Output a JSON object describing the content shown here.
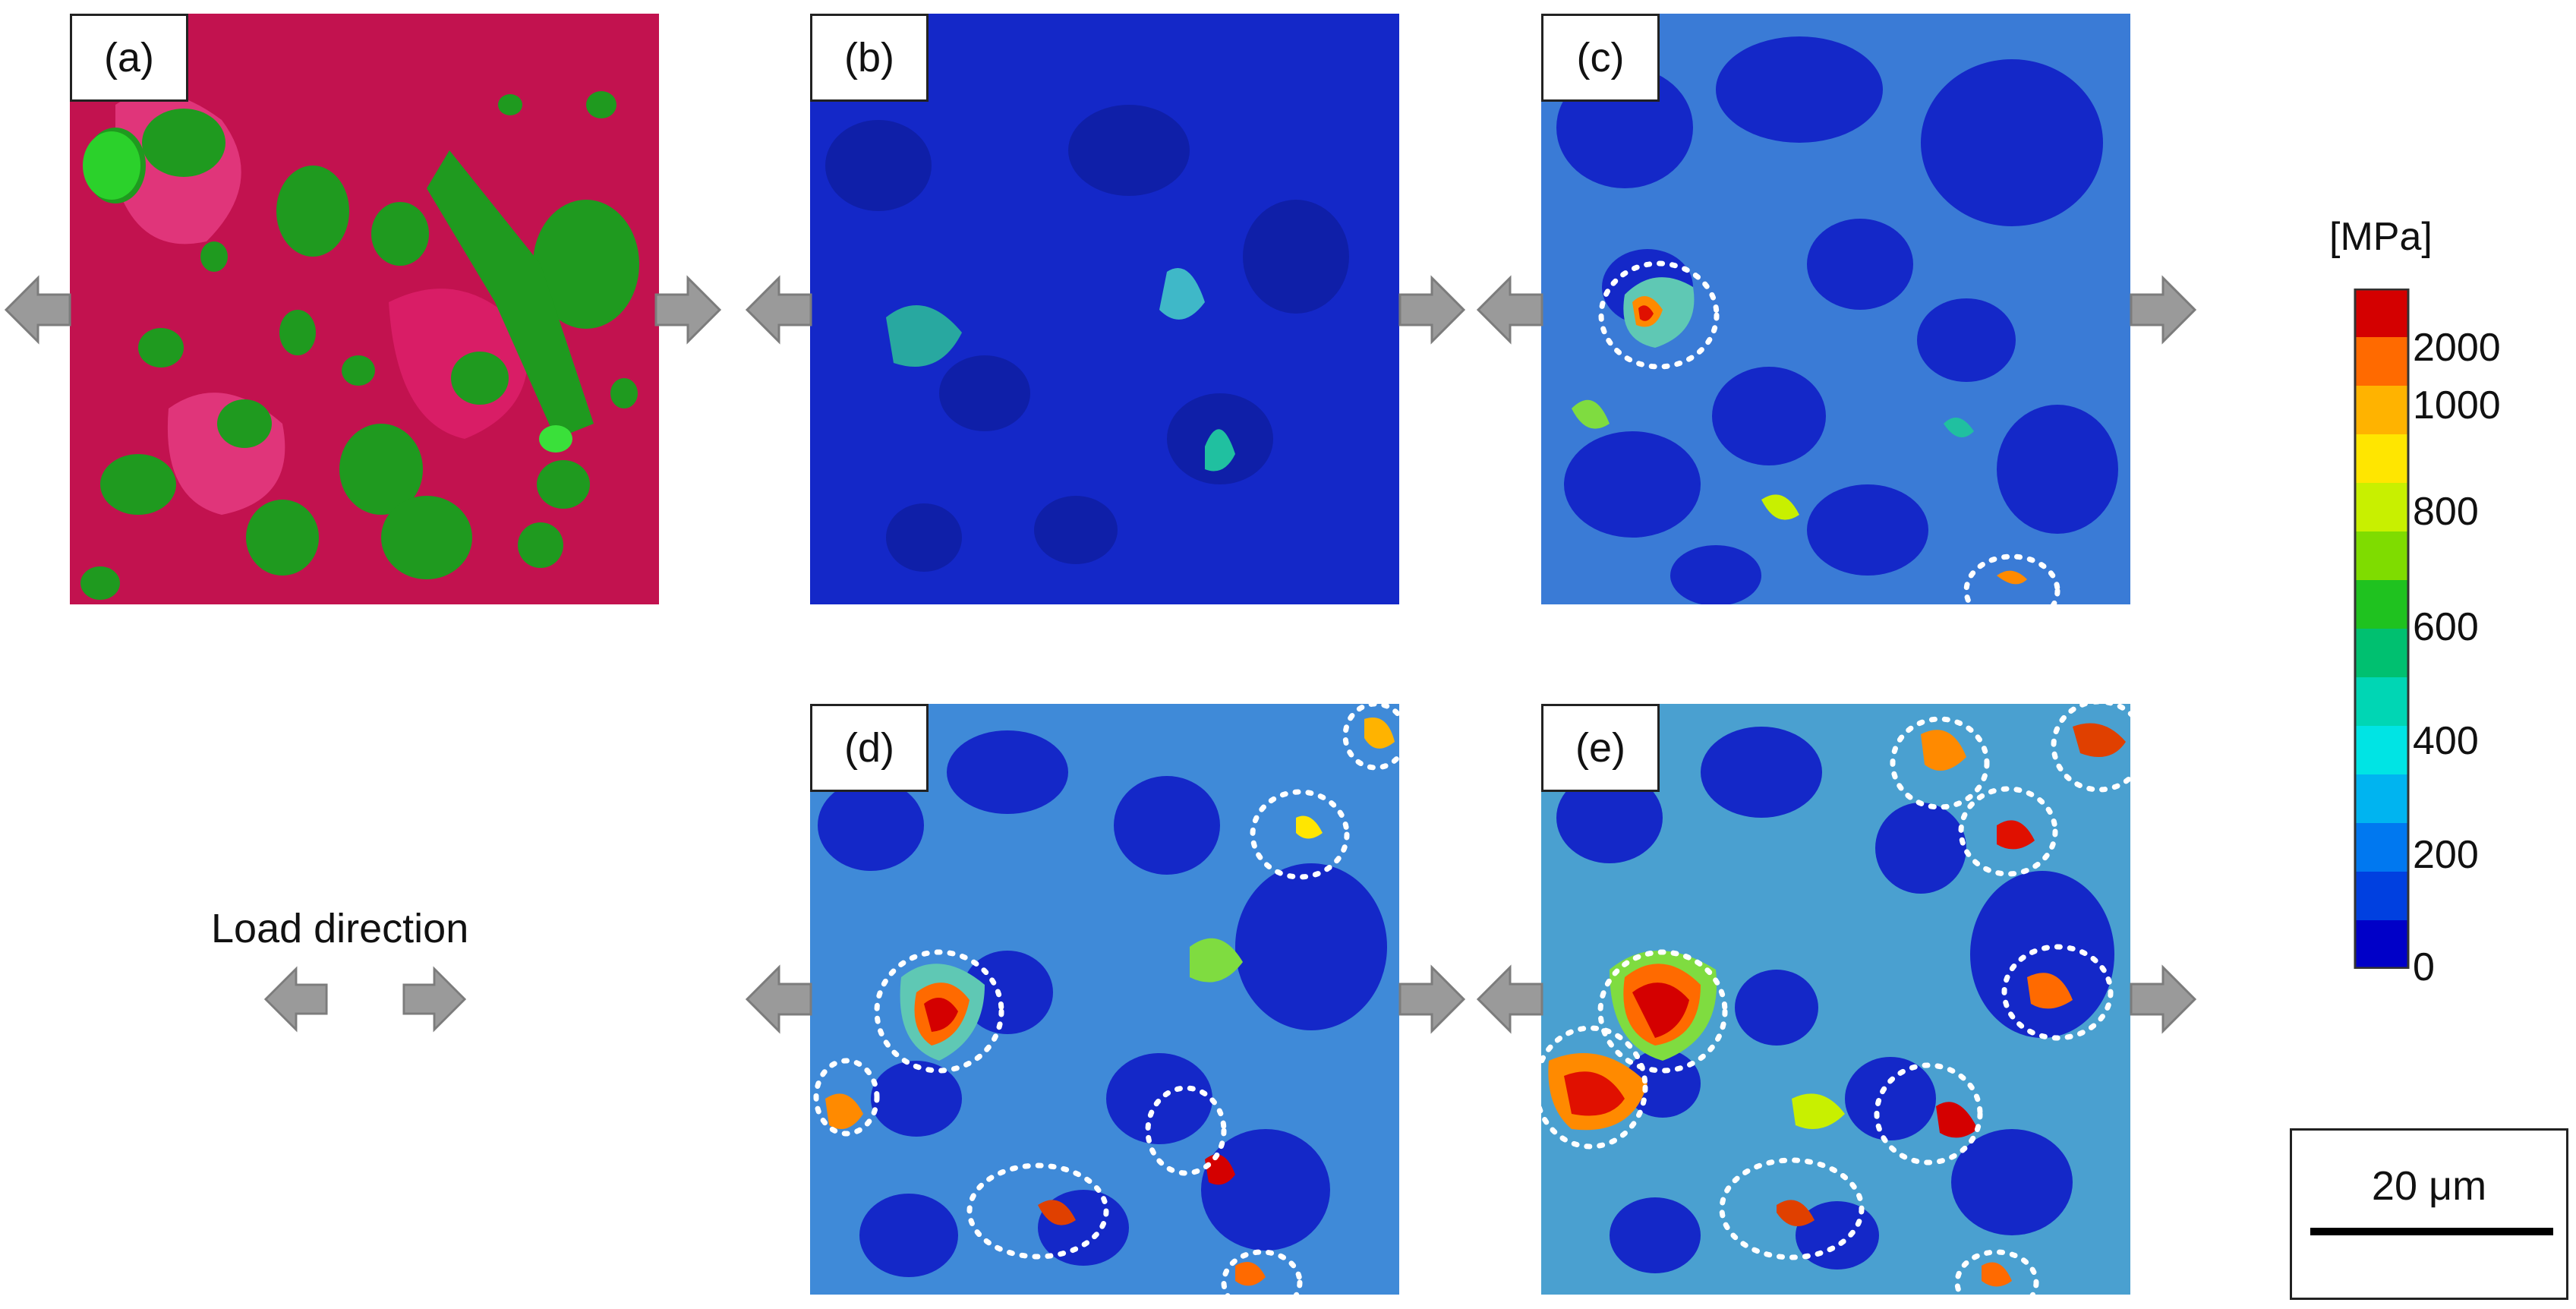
{
  "panels": {
    "a": {
      "label": "(a)"
    },
    "b": {
      "label": "(b)"
    },
    "c": {
      "label": "(c)"
    },
    "d": {
      "label": "(d)"
    },
    "e": {
      "label": "(e)"
    }
  },
  "legend": {
    "unit": "[MPa]",
    "ticks": [
      "2000",
      "1000",
      "800",
      "600",
      "400",
      "200",
      "0"
    ],
    "colors": [
      "#d40000",
      "#ff6a00",
      "#ffb300",
      "#ffe600",
      "#c8f000",
      "#7fdc00",
      "#1fc21f",
      "#00c070",
      "#00d6b4",
      "#00e4e4",
      "#00b4f0",
      "#0078f0",
      "#0040e0",
      "#0000c8"
    ]
  },
  "load": {
    "label": "Load direction"
  },
  "scale": {
    "label": "20 μm"
  },
  "material_colors": {
    "matrix": "#c2124f",
    "particles": "#1f9a1f",
    "stress_low": "#1428c8"
  }
}
